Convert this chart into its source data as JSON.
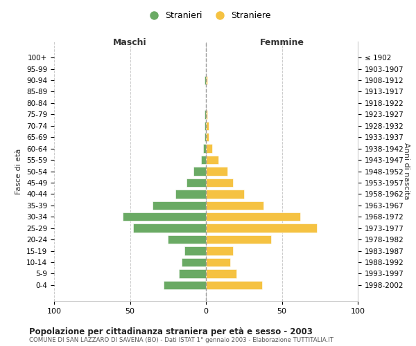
{
  "age_groups": [
    "0-4",
    "5-9",
    "10-14",
    "15-19",
    "20-24",
    "25-29",
    "30-34",
    "35-39",
    "40-44",
    "45-49",
    "50-54",
    "55-59",
    "60-64",
    "65-69",
    "70-74",
    "75-79",
    "80-84",
    "85-89",
    "90-94",
    "95-99",
    "100+"
  ],
  "birth_years": [
    "1998-2002",
    "1993-1997",
    "1988-1992",
    "1983-1987",
    "1978-1982",
    "1973-1977",
    "1968-1972",
    "1963-1967",
    "1958-1962",
    "1953-1957",
    "1948-1952",
    "1943-1947",
    "1938-1942",
    "1933-1937",
    "1928-1932",
    "1923-1927",
    "1918-1922",
    "1913-1917",
    "1908-1912",
    "1903-1907",
    "≤ 1902"
  ],
  "maschi": [
    28,
    18,
    16,
    14,
    25,
    48,
    55,
    35,
    20,
    13,
    8,
    3,
    2,
    1,
    1,
    1,
    0,
    0,
    1,
    0,
    0
  ],
  "femmine": [
    37,
    20,
    16,
    18,
    43,
    73,
    62,
    38,
    25,
    18,
    14,
    8,
    4,
    2,
    2,
    1,
    0,
    0,
    1,
    0,
    0
  ],
  "male_color": "#6aaa64",
  "female_color": "#f5c242",
  "male_label": "Stranieri",
  "female_label": "Straniere",
  "title": "Popolazione per cittadinanza straniera per età e sesso - 2003",
  "subtitle": "COMUNE DI SAN LAZZARO DI SAVENA (BO) - Dati ISTAT 1° gennaio 2003 - Elaborazione TUTTITALIA.IT",
  "xlabel_left": "Maschi",
  "xlabel_right": "Femmine",
  "ylabel_left": "Fasce di età",
  "ylabel_right": "Anni di nascita",
  "xlim": 100,
  "background_color": "#ffffff",
  "grid_color": "#cccccc"
}
